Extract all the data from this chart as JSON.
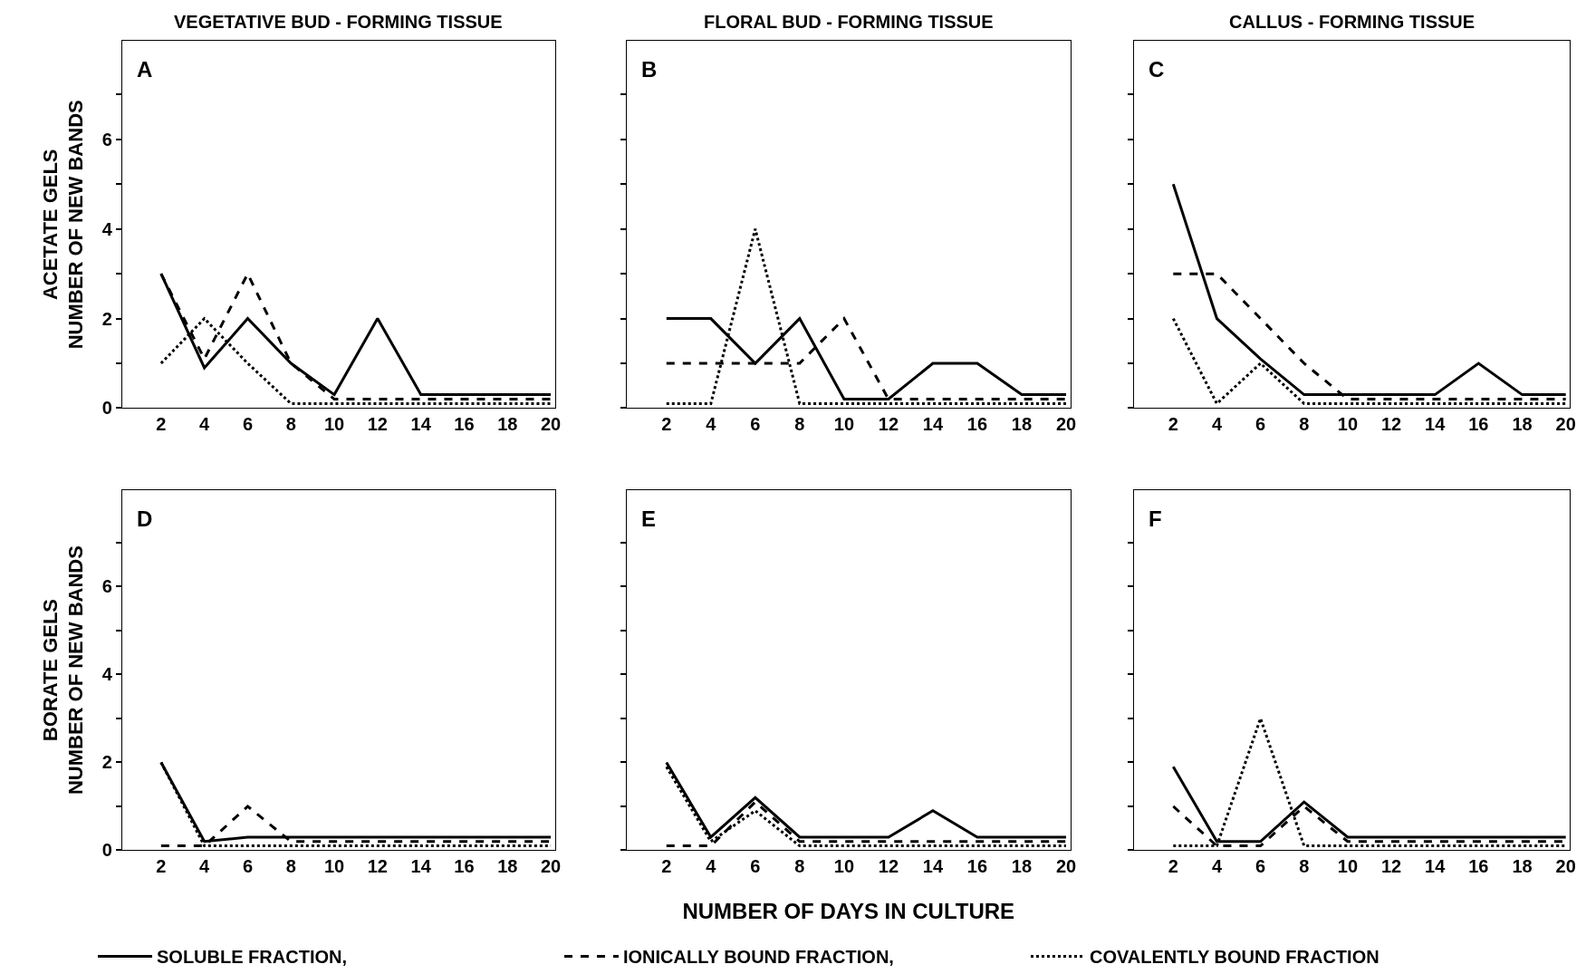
{
  "chart_data": [
    {
      "type": "line",
      "title": "VEGETATIVE BUD - FORMING TISSUE",
      "ylabel": "ACETATE GELS\nNUMBER OF NEW BANDS",
      "annotations": [
        "A"
      ],
      "x": [
        2,
        4,
        6,
        8,
        10,
        12,
        14,
        16,
        18,
        20
      ],
      "xlim": [
        0.2,
        20.2
      ],
      "xticks": [
        2,
        4,
        6,
        8,
        10,
        12,
        14,
        16,
        18,
        20
      ],
      "ylim": [
        0,
        8.2
      ],
      "yticks": [
        0,
        {
          "value": 1,
          "label": null
        },
        2,
        {
          "value": 3,
          "label": null
        },
        4,
        {
          "value": 5,
          "label": null
        },
        6,
        {
          "value": 7,
          "label": null
        }
      ],
      "legend": "bottom",
      "series": [
        {
          "name": "SOLUBLE FRACTION,",
          "color": "#000000",
          "line_style": "solid",
          "values": [
            3,
            0.9,
            2,
            1,
            0.3,
            2,
            0.3,
            0.3,
            0.3,
            0.3
          ]
        },
        {
          "name": "IONICALLY BOUND FRACTION,",
          "color": "#000000",
          "line_style": "dashed",
          "values": [
            3,
            1.1,
            3,
            1,
            0.2,
            0.2,
            0.2,
            0.2,
            0.2,
            0.2
          ]
        },
        {
          "name": "COVALENTLY BOUND FRACTION",
          "color": "#000000",
          "line_style": "dotted",
          "values": [
            1,
            2,
            1,
            0.1,
            0.1,
            0.1,
            0.1,
            0.1,
            0.1,
            0.1
          ]
        }
      ]
    },
    {
      "type": "line",
      "title": "FLORAL BUD - FORMING TISSUE",
      "annotations": [
        "B"
      ],
      "x": [
        2,
        4,
        6,
        8,
        10,
        12,
        14,
        16,
        18,
        20
      ],
      "xlim": [
        0.2,
        20.2
      ],
      "xticks": [
        2,
        4,
        6,
        8,
        10,
        12,
        14,
        16,
        18,
        20
      ],
      "ylim": [
        0,
        8.2
      ],
      "yticks": [
        0,
        {
          "value": 1,
          "label": null
        },
        2,
        {
          "value": 3,
          "label": null
        },
        4,
        {
          "value": 5,
          "label": null
        },
        6,
        {
          "value": 7,
          "label": null
        }
      ],
      "tick_labels": "x",
      "legend": "bottom",
      "series": [
        {
          "name": "SOLUBLE FRACTION,",
          "color": "#000000",
          "line_style": "solid",
          "values": [
            2,
            2,
            1,
            2,
            0.2,
            0.2,
            1,
            1,
            0.3,
            0.3
          ]
        },
        {
          "name": "IONICALLY BOUND FRACTION,",
          "color": "#000000",
          "line_style": "dashed",
          "values": [
            1,
            1,
            1,
            1,
            2,
            0.2,
            0.2,
            0.2,
            0.2,
            0.2
          ]
        },
        {
          "name": "COVALENTLY BOUND FRACTION",
          "color": "#000000",
          "line_style": "dotted",
          "values": [
            0.1,
            0.1,
            4,
            0.1,
            0.1,
            0.1,
            0.1,
            0.1,
            0.1,
            0.1
          ]
        }
      ]
    },
    {
      "type": "line",
      "title": "CALLUS - FORMING TISSUE",
      "annotations": [
        "C"
      ],
      "x": [
        2,
        4,
        6,
        8,
        10,
        12,
        14,
        16,
        18,
        20
      ],
      "xlim": [
        0.2,
        20.2
      ],
      "xticks": [
        2,
        4,
        6,
        8,
        10,
        12,
        14,
        16,
        18,
        20
      ],
      "ylim": [
        0,
        8.2
      ],
      "yticks": [
        0,
        {
          "value": 1,
          "label": null
        },
        2,
        {
          "value": 3,
          "label": null
        },
        4,
        {
          "value": 5,
          "label": null
        },
        6,
        {
          "value": 7,
          "label": null
        }
      ],
      "tick_labels": "x",
      "legend": "bottom",
      "series": [
        {
          "name": "SOLUBLE FRACTION,",
          "color": "#000000",
          "line_style": "solid",
          "values": [
            5,
            2,
            1.1,
            0.3,
            0.3,
            0.3,
            0.3,
            1,
            0.3,
            0.3
          ]
        },
        {
          "name": "IONICALLY BOUND FRACTION,",
          "color": "#000000",
          "line_style": "dashed",
          "values": [
            3,
            3,
            2,
            1,
            0.2,
            0.2,
            0.2,
            0.2,
            0.2,
            0.2
          ]
        },
        {
          "name": "COVALENTLY BOUND FRACTION",
          "color": "#000000",
          "line_style": "dotted",
          "values": [
            2,
            0.1,
            1,
            0.1,
            0.1,
            0.1,
            0.1,
            0.1,
            0.1,
            0.1
          ]
        }
      ]
    },
    {
      "type": "line",
      "ylabel": "BORATE GELS\nNUMBER OF NEW BANDS",
      "annotations": [
        "D"
      ],
      "x": [
        2,
        4,
        6,
        8,
        10,
        12,
        14,
        16,
        18,
        20
      ],
      "xlim": [
        0.2,
        20.2
      ],
      "xticks": [
        2,
        4,
        6,
        8,
        10,
        12,
        14,
        16,
        18,
        20
      ],
      "ylim": [
        0,
        8.2
      ],
      "yticks": [
        0,
        {
          "value": 1,
          "label": null
        },
        2,
        {
          "value": 3,
          "label": null
        },
        4,
        {
          "value": 5,
          "label": null
        },
        6,
        {
          "value": 7,
          "label": null
        }
      ],
      "legend": "bottom",
      "series": [
        {
          "name": "SOLUBLE FRACTION,",
          "color": "#000000",
          "line_style": "solid",
          "values": [
            2,
            0.2,
            0.3,
            0.3,
            0.3,
            0.3,
            0.3,
            0.3,
            0.3,
            0.3
          ]
        },
        {
          "name": "IONICALLY BOUND FRACTION,",
          "color": "#000000",
          "line_style": "dashed",
          "values": [
            0.1,
            0.1,
            1,
            0.2,
            0.2,
            0.2,
            0.2,
            0.2,
            0.2,
            0.2
          ]
        },
        {
          "name": "COVALENTLY BOUND FRACTION",
          "color": "#000000",
          "line_style": "dotted",
          "values": [
            2,
            0.1,
            0.1,
            0.1,
            0.1,
            0.1,
            0.1,
            0.1,
            0.1,
            0.1
          ]
        }
      ]
    },
    {
      "type": "line",
      "xlabel": "NUMBER OF DAYS IN CULTURE",
      "annotations": [
        "E"
      ],
      "x": [
        2,
        4,
        6,
        8,
        10,
        12,
        14,
        16,
        18,
        20
      ],
      "xlim": [
        0.2,
        20.2
      ],
      "xticks": [
        2,
        4,
        6,
        8,
        10,
        12,
        14,
        16,
        18,
        20
      ],
      "ylim": [
        0,
        8.2
      ],
      "yticks": [
        0,
        {
          "value": 1,
          "label": null
        },
        2,
        {
          "value": 3,
          "label": null
        },
        4,
        {
          "value": 5,
          "label": null
        },
        6,
        {
          "value": 7,
          "label": null
        }
      ],
      "tick_labels": "x",
      "legend": "bottom",
      "series": [
        {
          "name": "SOLUBLE FRACTION,",
          "color": "#000000",
          "line_style": "solid",
          "values": [
            2,
            0.3,
            1.2,
            0.3,
            0.3,
            0.3,
            0.9,
            0.3,
            0.3,
            0.3
          ]
        },
        {
          "name": "IONICALLY BOUND FRACTION,",
          "color": "#000000",
          "line_style": "dashed",
          "values": [
            0.1,
            0.1,
            1.1,
            0.2,
            0.2,
            0.2,
            0.2,
            0.2,
            0.2,
            0.2
          ]
        },
        {
          "name": "COVALENTLY BOUND FRACTION",
          "color": "#000000",
          "line_style": "dotted",
          "values": [
            1.9,
            0.2,
            0.9,
            0.1,
            0.1,
            0.1,
            0.1,
            0.1,
            0.1,
            0.1
          ]
        }
      ]
    },
    {
      "type": "line",
      "annotations": [
        "F"
      ],
      "x": [
        2,
        4,
        6,
        8,
        10,
        12,
        14,
        16,
        18,
        20
      ],
      "xlim": [
        0.2,
        20.2
      ],
      "xticks": [
        2,
        4,
        6,
        8,
        10,
        12,
        14,
        16,
        18,
        20
      ],
      "ylim": [
        0,
        8.2
      ],
      "yticks": [
        0,
        {
          "value": 1,
          "label": null
        },
        2,
        {
          "value": 3,
          "label": null
        },
        4,
        {
          "value": 5,
          "label": null
        },
        6,
        {
          "value": 7,
          "label": null
        }
      ],
      "tick_labels": "x",
      "legend": "bottom",
      "series": [
        {
          "name": "SOLUBLE FRACTION,",
          "color": "#000000",
          "line_style": "solid",
          "values": [
            1.9,
            0.2,
            0.2,
            1.1,
            0.3,
            0.3,
            0.3,
            0.3,
            0.3,
            0.3
          ]
        },
        {
          "name": "IONICALLY BOUND FRACTION,",
          "color": "#000000",
          "line_style": "dashed",
          "values": [
            1,
            0.1,
            0.1,
            1,
            0.2,
            0.2,
            0.2,
            0.2,
            0.2,
            0.2
          ]
        },
        {
          "name": "COVALENTLY BOUND FRACTION",
          "color": "#000000",
          "line_style": "dotted",
          "values": [
            0.1,
            0.1,
            3,
            0.1,
            0.1,
            0.1,
            0.1,
            0.1,
            0.1,
            0.1
          ]
        }
      ]
    }
  ]
}
